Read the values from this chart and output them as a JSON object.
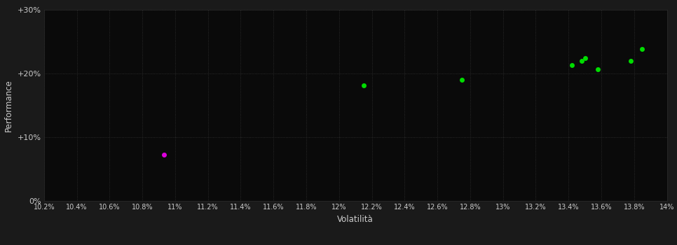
{
  "outer_bg_color": "#1a1a1a",
  "plot_bg_color": "#0a0a0a",
  "grid_color": "#333333",
  "text_color": "#cccccc",
  "xlabel": "Volatilità",
  "ylabel": "Performance",
  "xlim": [
    0.102,
    0.14
  ],
  "ylim": [
    0.0,
    0.3
  ],
  "xtick_values": [
    0.102,
    0.104,
    0.106,
    0.108,
    0.11,
    0.112,
    0.114,
    0.116,
    0.118,
    0.12,
    0.122,
    0.124,
    0.126,
    0.128,
    0.13,
    0.132,
    0.134,
    0.136,
    0.138,
    0.14
  ],
  "xtick_labels": [
    "10.2%",
    "10.4%",
    "10.6%",
    "10.8%",
    "11%",
    "11.2%",
    "11.4%",
    "11.6%",
    "11.8%",
    "12%",
    "12.2%",
    "12.4%",
    "12.6%",
    "12.8%",
    "13%",
    "13.2%",
    "13.4%",
    "13.6%",
    "13.8%",
    "14%"
  ],
  "ytick_values": [
    0.0,
    0.1,
    0.2,
    0.3
  ],
  "ytick_labels": [
    "0%",
    "+10%",
    "+20%",
    "+30%"
  ],
  "green_points": [
    [
      0.1215,
      0.181
    ],
    [
      0.1275,
      0.19
    ],
    [
      0.1342,
      0.213
    ],
    [
      0.1348,
      0.22
    ],
    [
      0.135,
      0.224
    ],
    [
      0.1358,
      0.207
    ],
    [
      0.1378,
      0.22
    ],
    [
      0.1385,
      0.238
    ]
  ],
  "magenta_points": [
    [
      0.1093,
      0.073
    ]
  ],
  "point_size": 25,
  "green_color": "#00dd00",
  "magenta_color": "#dd00dd"
}
